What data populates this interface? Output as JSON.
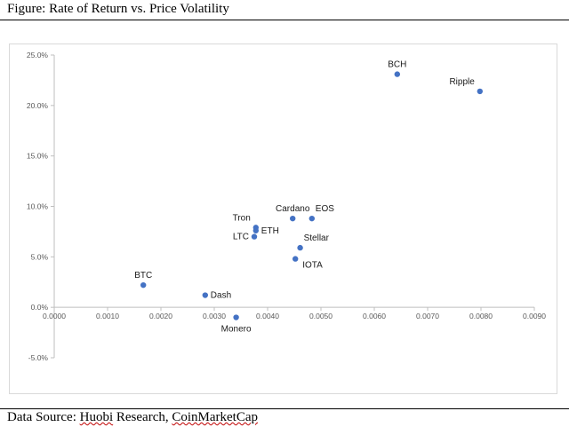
{
  "figure_title": "Figure: Rate of Return vs. Price Volatility",
  "source": {
    "prefix": "Data Source: ",
    "name1": "Huobi",
    "mid": " Research, ",
    "name2": "CoinMarketCap"
  },
  "chart_data": {
    "type": "scatter",
    "title": "",
    "xlabel": "",
    "ylabel": "",
    "xlim": [
      0,
      0.009
    ],
    "ylim": [
      -0.05,
      0.25
    ],
    "x_ticks": [
      0,
      0.001,
      0.002,
      0.003,
      0.004,
      0.005,
      0.006,
      0.007,
      0.008,
      0.009
    ],
    "x_tick_labels": [
      "0.0000",
      "0.0010",
      "0.0020",
      "0.0030",
      "0.0040",
      "0.0050",
      "0.0060",
      "0.0070",
      "0.0080",
      "0.0090"
    ],
    "y_ticks": [
      -0.05,
      0,
      0.05,
      0.1,
      0.15,
      0.2,
      0.25
    ],
    "y_tick_labels": [
      "-5.0%",
      "0.0%",
      "5.0%",
      "10.0%",
      "15.0%",
      "20.0%",
      "25.0%"
    ],
    "grid": false,
    "marker_color": "#4472c4",
    "points": [
      {
        "label": "BCH",
        "x": 0.00643,
        "y": 0.231,
        "pos": "above"
      },
      {
        "label": "Ripple",
        "x": 0.00798,
        "y": 0.214,
        "pos": "above-left"
      },
      {
        "label": "Cardano",
        "x": 0.00447,
        "y": 0.088,
        "pos": "above"
      },
      {
        "label": "EOS",
        "x": 0.00483,
        "y": 0.088,
        "pos": "above-right"
      },
      {
        "label": "Tron",
        "x": 0.00378,
        "y": 0.079,
        "pos": "above-left"
      },
      {
        "label": "ETH",
        "x": 0.00378,
        "y": 0.076,
        "pos": "right"
      },
      {
        "label": "LTC",
        "x": 0.00375,
        "y": 0.07,
        "pos": "left"
      },
      {
        "label": "Stellar",
        "x": 0.00461,
        "y": 0.059,
        "pos": "above-right"
      },
      {
        "label": "IOTA",
        "x": 0.00452,
        "y": 0.048,
        "pos": "below-right"
      },
      {
        "label": "BTC",
        "x": 0.00167,
        "y": 0.022,
        "pos": "above"
      },
      {
        "label": "Dash",
        "x": 0.00283,
        "y": 0.012,
        "pos": "right"
      },
      {
        "label": "Monero",
        "x": 0.00341,
        "y": -0.01,
        "pos": "below"
      }
    ]
  }
}
